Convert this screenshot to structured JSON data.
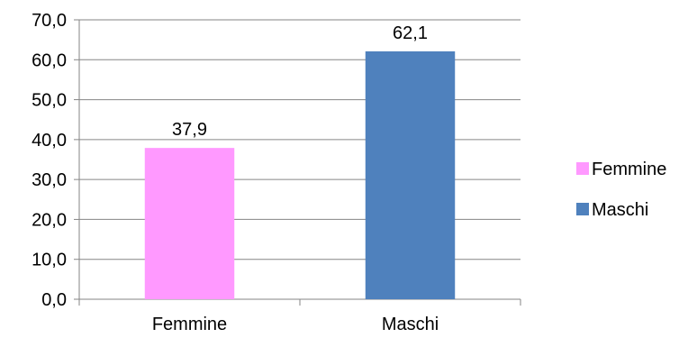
{
  "chart_data": {
    "type": "bar",
    "categories": [
      "Femmine",
      "Maschi"
    ],
    "values": [
      37.9,
      62.1
    ],
    "value_labels": [
      "37,9",
      "62,1"
    ],
    "colors": [
      "#ff99ff",
      "#4f81bd"
    ],
    "ylim": [
      0,
      70
    ],
    "yticks": [
      0,
      10,
      20,
      30,
      40,
      50,
      60,
      70
    ],
    "ytick_labels": [
      "0,0",
      "10,0",
      "20,0",
      "30,0",
      "40,0",
      "50,0",
      "60,0",
      "70,0"
    ],
    "grid": true,
    "legend": {
      "placement": "right",
      "entries": [
        "Femmine",
        "Maschi"
      ]
    }
  }
}
